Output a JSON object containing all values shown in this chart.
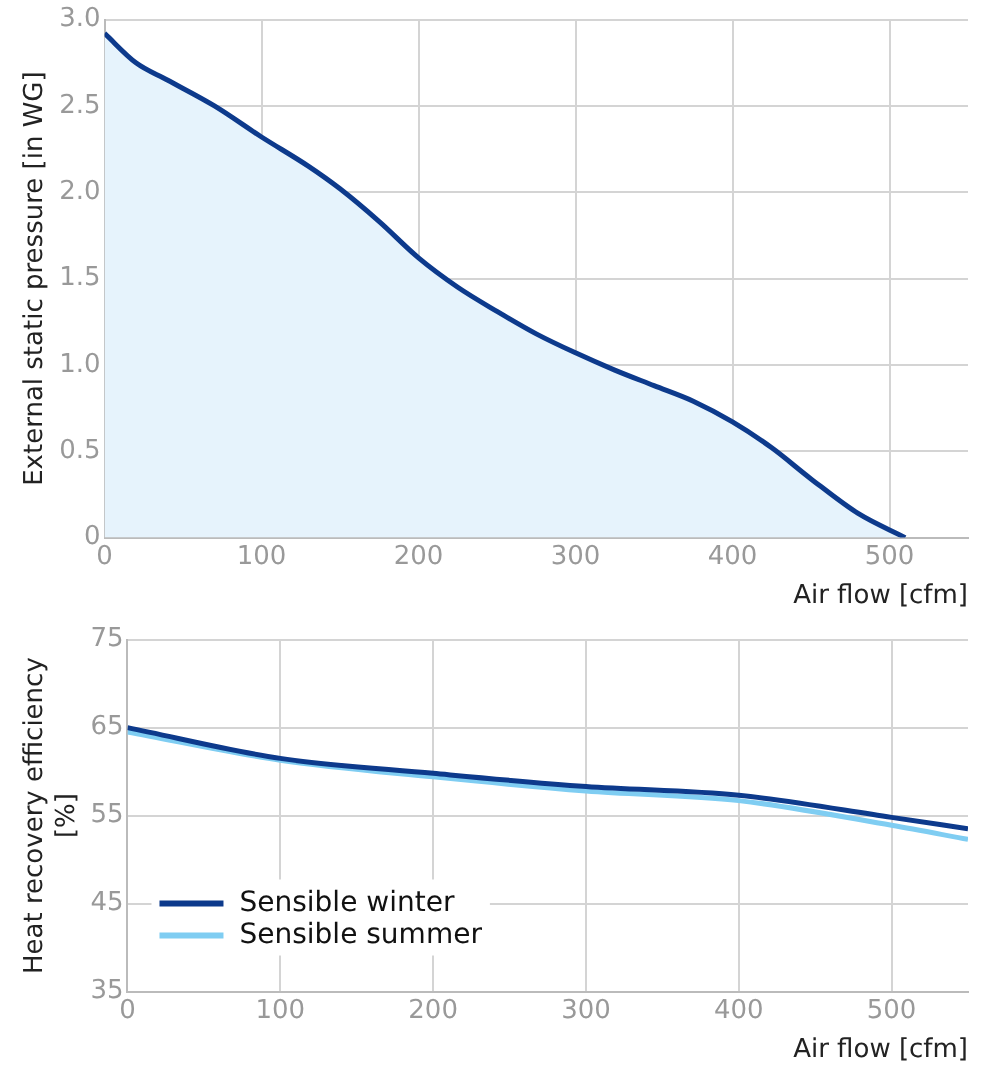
{
  "chart_data": [
    {
      "type": "area",
      "xlabel": "Air flow [cfm]",
      "ylabel": "External static pressure [in WG]",
      "x": [
        0,
        20,
        40,
        70,
        100,
        130,
        150,
        175,
        200,
        225,
        250,
        275,
        300,
        325,
        350,
        375,
        400,
        425,
        450,
        480,
        510
      ],
      "series": [
        {
          "color": "#0d3a8c",
          "values": [
            2.92,
            2.75,
            2.65,
            2.5,
            2.32,
            2.15,
            2.02,
            1.83,
            1.62,
            1.45,
            1.31,
            1.18,
            1.07,
            0.97,
            0.88,
            0.79,
            0.67,
            0.52,
            0.34,
            0.14,
            0.0
          ]
        }
      ],
      "xlim": [
        0,
        550
      ],
      "xticks": [
        0,
        100,
        200,
        300,
        400,
        500
      ],
      "ylim": [
        0,
        3.0
      ],
      "yticks": [
        {
          "value": 0,
          "label": "0"
        },
        0.5,
        {
          "value": 1,
          "label": "1.0"
        },
        1.5,
        {
          "value": 2,
          "label": "2.0"
        },
        2.5,
        {
          "value": 3,
          "label": "3.0"
        }
      ],
      "grid": true,
      "legend": false
    },
    {
      "type": "line",
      "xlabel": "Air flow [cfm]",
      "ylabel": "Heat recovery efficiency [%]",
      "x": [
        0,
        100,
        200,
        300,
        400,
        500,
        550
      ],
      "series": [
        {
          "name": "Sensible winter",
          "color": "#0d3a8c",
          "values": [
            65,
            61.5,
            59.8,
            58.3,
            57.3,
            54.8,
            53.5
          ]
        },
        {
          "name": "Sensible summer",
          "color": "#7fcdf2",
          "values": [
            64.5,
            61.3,
            59.4,
            57.8,
            56.7,
            53.9,
            52.3
          ]
        }
      ],
      "xlim": [
        0,
        550
      ],
      "xticks": [
        0,
        100,
        200,
        300,
        400,
        500
      ],
      "ylim": [
        35,
        75
      ],
      "yticks": [
        35,
        45,
        55,
        65,
        75
      ],
      "grid": true,
      "legend": "bottom left"
    }
  ]
}
